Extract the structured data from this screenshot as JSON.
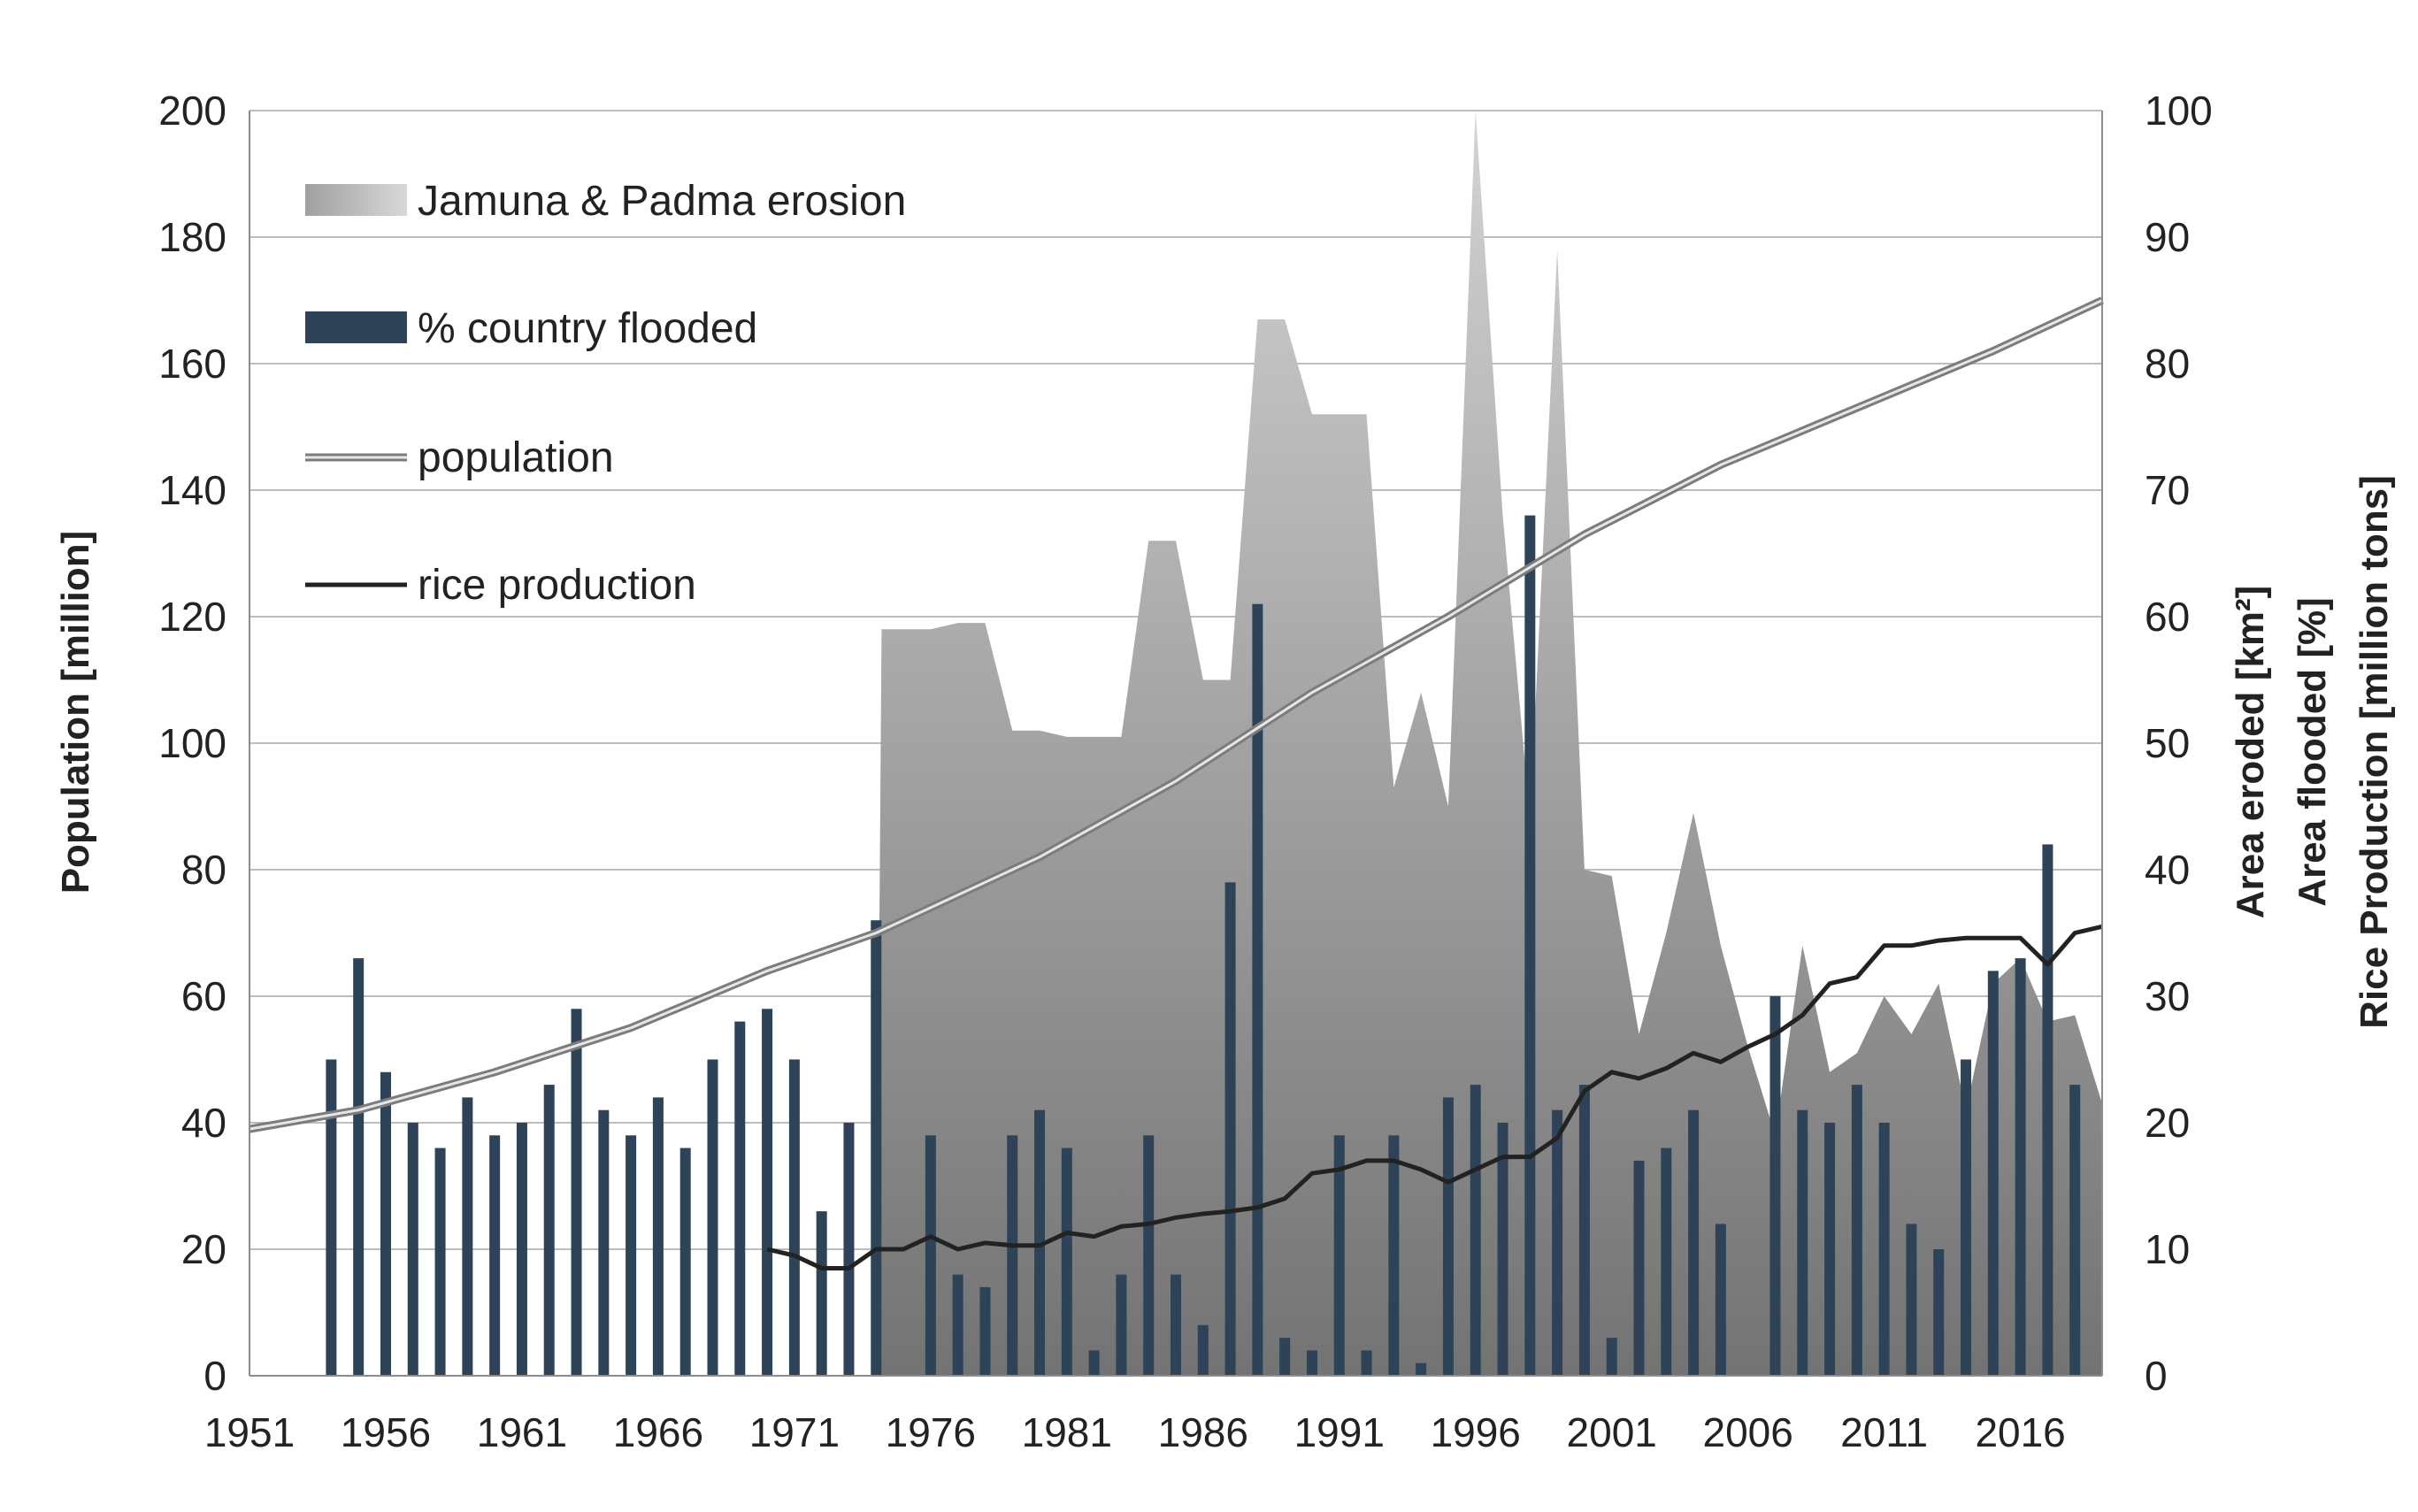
{
  "chart_data": {
    "type": "bar",
    "title": "",
    "xlabel": "",
    "ylabel_left": "Population  [million]",
    "ylabel_right": [
      "Area eroded [km²]",
      "Area flooded [%]",
      "Rice Production [million tons]"
    ],
    "ylim_left": [
      0,
      200
    ],
    "ylim_right": [
      0,
      100
    ],
    "yticks_left": [
      0,
      20,
      40,
      60,
      80,
      100,
      120,
      140,
      160,
      180,
      200
    ],
    "yticks_right": [
      0,
      10,
      20,
      30,
      40,
      50,
      60,
      70,
      80,
      90,
      100
    ],
    "xlim": [
      1951,
      2019
    ],
    "xticks": [
      1951,
      1956,
      1961,
      1966,
      1971,
      1976,
      1981,
      1986,
      1991,
      1996,
      2001,
      2006,
      2011,
      2016
    ],
    "grid": true,
    "legend_position": "top-left",
    "colors": {
      "flooded": "#2f4358",
      "erosion_top": "#d0d0d0",
      "erosion_bottom": "#777777",
      "population": "#8a8a8a",
      "rice": "#222222"
    },
    "series": [
      {
        "name": "Jamuna & Padma erosion",
        "kind": "area",
        "axis": "right",
        "x": [
          1974,
          1974.2,
          1976,
          1977,
          1978,
          1979,
          1980,
          1981,
          1982,
          1983,
          1984,
          1985,
          1986,
          1987,
          1988,
          1989,
          1990,
          1991,
          1992,
          1993,
          1994,
          1995,
          1996,
          1997,
          1998,
          1999,
          2000,
          2001,
          2002,
          2003,
          2004,
          2005,
          2006,
          2007,
          2008,
          2009,
          2010,
          2011,
          2012,
          2013,
          2014,
          2015,
          2016,
          2017,
          2018,
          2019
        ],
        "values": [
          0,
          59,
          59,
          59.5,
          59.5,
          51,
          51,
          50.5,
          50.5,
          50.5,
          66,
          66,
          55,
          55,
          83.5,
          83.5,
          76,
          76,
          76,
          46.5,
          54,
          45,
          100,
          68,
          44,
          89,
          40,
          39.5,
          27,
          35,
          44.5,
          34,
          26,
          19,
          34,
          24,
          25.5,
          30,
          27,
          31,
          21,
          31,
          33,
          28,
          28.5,
          21.5
        ]
      },
      {
        "name": "% country flooded",
        "kind": "bar",
        "axis": "right",
        "x": [
          1954,
          1955,
          1956,
          1957,
          1958,
          1959,
          1960,
          1961,
          1962,
          1963,
          1964,
          1965,
          1966,
          1967,
          1968,
          1969,
          1970,
          1971,
          1972,
          1973,
          1974,
          1975,
          1976,
          1977,
          1978,
          1979,
          1980,
          1981,
          1982,
          1983,
          1984,
          1985,
          1986,
          1987,
          1988,
          1989,
          1990,
          1991,
          1992,
          1993,
          1994,
          1995,
          1996,
          1997,
          1998,
          1999,
          2000,
          2001,
          2002,
          2003,
          2004,
          2005,
          2006,
          2007,
          2008,
          2009,
          2010,
          2011,
          2012,
          2013,
          2014,
          2015,
          2016,
          2017,
          2018
        ],
        "values": [
          25,
          33,
          24,
          20,
          18,
          22,
          19,
          20,
          23,
          29,
          21,
          19,
          22,
          18,
          25,
          28,
          29,
          25,
          13,
          20,
          36,
          0,
          19,
          8,
          7,
          19,
          21,
          18,
          2,
          8,
          19,
          8,
          4,
          39,
          61,
          3,
          2,
          19,
          2,
          19,
          1,
          22,
          23,
          20,
          68,
          21,
          23,
          3,
          17,
          18,
          21,
          12,
          0,
          30,
          21,
          20,
          23,
          20,
          12,
          10,
          25,
          32,
          33,
          42,
          23
        ]
      },
      {
        "name": "population",
        "kind": "line",
        "axis": "left",
        "x": [
          1951,
          1955,
          1960,
          1965,
          1970,
          1974,
          1980,
          1985,
          1990,
          1995,
          2000,
          2005,
          2010,
          2015,
          2019
        ],
        "values": [
          39,
          42,
          48,
          55,
          64,
          70,
          82,
          94,
          108,
          120,
          133,
          144,
          153,
          162,
          170
        ]
      },
      {
        "name": "rice production",
        "kind": "line",
        "axis": "right",
        "x": [
          1970,
          1971,
          1972,
          1973,
          1974,
          1975,
          1976,
          1977,
          1978,
          1979,
          1980,
          1981,
          1982,
          1983,
          1984,
          1985,
          1986,
          1987,
          1988,
          1989,
          1990,
          1991,
          1992,
          1993,
          1994,
          1995,
          1996,
          1997,
          1998,
          1999,
          2000,
          2001,
          2002,
          2003,
          2004,
          2005,
          2006,
          2007,
          2008,
          2009,
          2010,
          2011,
          2012,
          2013,
          2014,
          2015,
          2016,
          2017,
          2018,
          2019
        ],
        "values": [
          10,
          9.5,
          8.5,
          8.5,
          10,
          10,
          11,
          10,
          10.5,
          10.3,
          10.3,
          11.3,
          11,
          11.8,
          12,
          12.5,
          12.8,
          13,
          13.3,
          14,
          16,
          16.3,
          17,
          17,
          16.3,
          15.3,
          16.3,
          17.3,
          17.3,
          18.8,
          22.5,
          24,
          23.5,
          24.3,
          25.5,
          24.8,
          26,
          27,
          28.5,
          31,
          31.5,
          34,
          34,
          34.4,
          34.6,
          34.6,
          34.6,
          32.5,
          35,
          35.5
        ]
      }
    ]
  }
}
